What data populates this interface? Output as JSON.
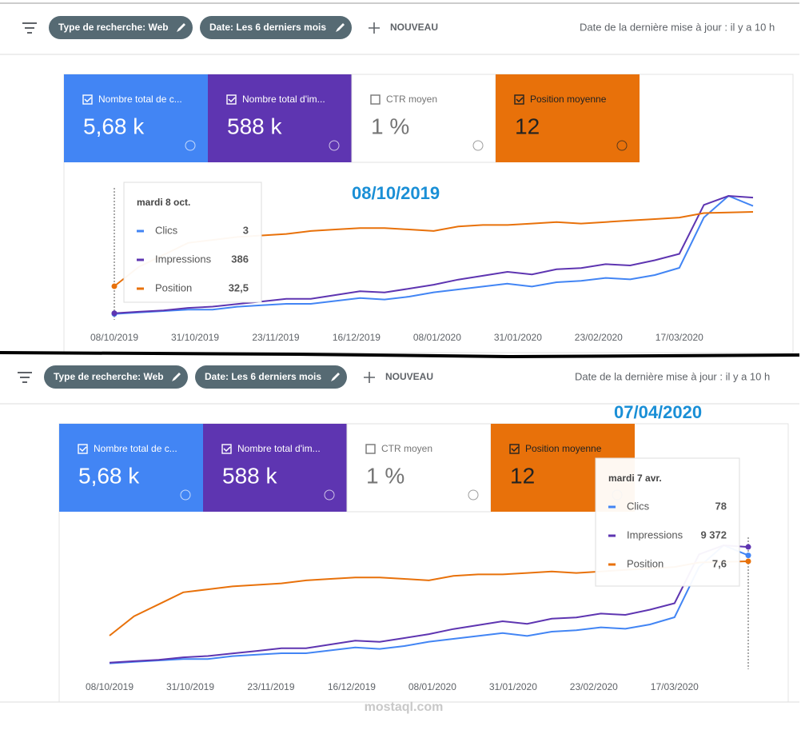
{
  "panels": [
    {
      "toolbar": {
        "chips": [
          "Type de recherche: Web",
          "Date: Les 6 derniers mois"
        ],
        "new": "NOUVEAU",
        "updated": "Date de la dernière mise à jour : il y a 10 h"
      },
      "metrics": [
        {
          "label": "Nombre total de c...",
          "value": "5,68 k",
          "checked": true,
          "color": "#4285f4"
        },
        {
          "label": "Nombre total d'im...",
          "value": "588 k",
          "checked": true,
          "color": "#5e35b1"
        },
        {
          "label": "CTR moyen",
          "value": "1 %",
          "checked": false,
          "color": "#ffffff"
        },
        {
          "label": "Position moyenne",
          "value": "12",
          "checked": true,
          "color": "#e8710a"
        }
      ],
      "annotation": "08/10/2019",
      "tooltip": {
        "title": "mardi 8 oct.",
        "index": 0,
        "rows": [
          {
            "label": "Clics",
            "value": "3"
          },
          {
            "label": "Impressions",
            "value": "386"
          },
          {
            "label": "Position",
            "value": "32,5"
          }
        ]
      }
    },
    {
      "toolbar": {
        "chips": [
          "Type de recherche: Web",
          "Date: Les 6 derniers mois"
        ],
        "new": "NOUVEAU",
        "updated": "Date de la dernière mise à jour : il y a 10 h"
      },
      "metrics": [
        {
          "label": "Nombre total de c...",
          "value": "5,68 k",
          "checked": true,
          "color": "#4285f4"
        },
        {
          "label": "Nombre total d'im...",
          "value": "588 k",
          "checked": true,
          "color": "#5e35b1"
        },
        {
          "label": "CTR moyen",
          "value": "1 %",
          "checked": false,
          "color": "#ffffff"
        },
        {
          "label": "Position moyenne",
          "value": "12",
          "checked": true,
          "color": "#e8710a"
        }
      ],
      "annotation": "07/04/2020",
      "tooltip": {
        "title": "mardi 7 avr.",
        "index": 26,
        "rows": [
          {
            "label": "Clics",
            "value": "78"
          },
          {
            "label": "Impressions",
            "value": "9 372"
          },
          {
            "label": "Position",
            "value": "7,6"
          }
        ]
      }
    }
  ],
  "chart_data": {
    "type": "line",
    "x": [
      "08/10/2019",
      "15/10/2019",
      "22/10/2019",
      "29/10/2019",
      "05/11/2019",
      "12/11/2019",
      "19/11/2019",
      "26/11/2019",
      "03/12/2019",
      "10/12/2019",
      "17/12/2019",
      "24/12/2019",
      "31/12/2019",
      "07/01/2020",
      "14/01/2020",
      "21/01/2020",
      "28/01/2020",
      "04/02/2020",
      "11/02/2020",
      "18/02/2020",
      "25/02/2020",
      "03/03/2020",
      "10/03/2020",
      "17/03/2020",
      "24/03/2020",
      "31/03/2020",
      "07/04/2020"
    ],
    "xticks": [
      "08/10/2019",
      "31/10/2019",
      "23/11/2019",
      "16/12/2019",
      "08/01/2020",
      "31/01/2020",
      "23/02/2020",
      "17/03/2020"
    ],
    "series": [
      {
        "name": "Clics",
        "color": "#4285f4",
        "values": [
          3,
          4,
          5,
          6,
          6,
          8,
          9,
          10,
          10,
          12,
          14,
          13,
          15,
          18,
          20,
          22,
          24,
          22,
          25,
          26,
          28,
          27,
          30,
          35,
          70,
          85,
          78
        ]
      },
      {
        "name": "Impressions",
        "color": "#5e35b1",
        "values": [
          386,
          500,
          600,
          800,
          900,
          1100,
          1300,
          1500,
          1500,
          1800,
          2100,
          2000,
          2300,
          2600,
          3000,
          3300,
          3600,
          3400,
          3800,
          3900,
          4200,
          4100,
          4500,
          5000,
          8800,
          9500,
          9372
        ]
      },
      {
        "name": "Position",
        "color": "#e8710a",
        "reversed": true,
        "values": [
          32.5,
          26,
          22,
          18,
          17,
          16,
          15.5,
          15,
          14,
          13.5,
          13,
          13,
          13.5,
          14,
          12.5,
          12,
          12,
          11.5,
          11,
          11.5,
          11,
          10.5,
          10,
          9.5,
          8,
          7.8,
          7.6
        ]
      }
    ]
  },
  "watermark": "mostaql.com"
}
